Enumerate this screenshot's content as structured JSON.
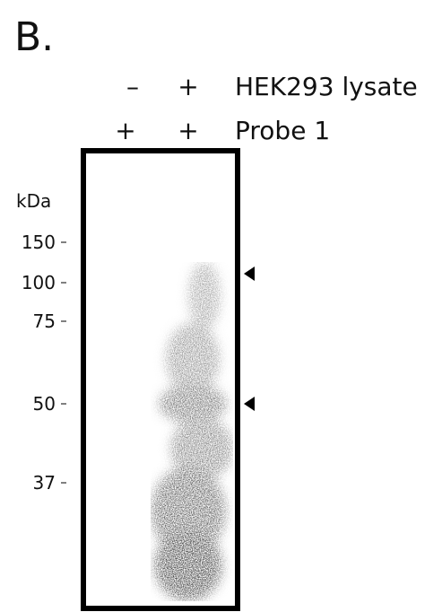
{
  "panel_label": "B.",
  "conditions": [
    {
      "name": "HEK293 lysate",
      "lanes": [
        "–",
        "+"
      ]
    },
    {
      "name": "Probe 1",
      "lanes": [
        "+",
        "+"
      ]
    }
  ],
  "axis_label": "kDa",
  "markers": [
    "150",
    "100",
    "75",
    "50",
    "37"
  ]
}
